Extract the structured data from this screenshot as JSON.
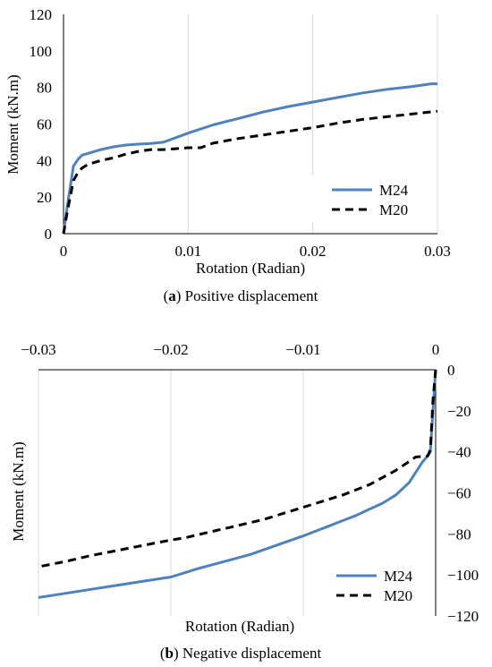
{
  "chart_data": [
    {
      "type": "line",
      "caption_letter": "a",
      "caption_text": "Positive displacement",
      "xlabel": "Rotation (Radian)",
      "ylabel": "Moment (kN.m)",
      "xlim": [
        0,
        0.03
      ],
      "ylim": [
        0,
        120
      ],
      "xticks": [
        0,
        0.01,
        0.02,
        0.03
      ],
      "xtick_labels": [
        "0",
        "0.01",
        "0.02",
        "0.03"
      ],
      "yticks": [
        0,
        20,
        40,
        60,
        80,
        100,
        120
      ],
      "ytick_labels": [
        "0",
        "20",
        "40",
        "60",
        "80",
        "100",
        "120"
      ],
      "grid": "vertical",
      "legend_position": "bottom-right",
      "series": [
        {
          "name": "M24",
          "color": "#4f81bd",
          "dash": "solid",
          "x": [
            0,
            0.0003,
            0.0008,
            0.0012,
            0.0015,
            0.002,
            0.003,
            0.004,
            0.005,
            0.006,
            0.007,
            0.008,
            0.009,
            0.01,
            0.012,
            0.014,
            0.016,
            0.018,
            0.02,
            0.022,
            0.024,
            0.026,
            0.028,
            0.0295,
            0.03
          ],
          "y": [
            0,
            15,
            37,
            41,
            43,
            44,
            46,
            47.5,
            48.5,
            49,
            49.3,
            50,
            52.5,
            55,
            59.5,
            63,
            66.5,
            69.5,
            72,
            74.5,
            77,
            79,
            80.5,
            82,
            82
          ]
        },
        {
          "name": "M20",
          "color": "#000000",
          "dash": "dashed",
          "x": [
            0,
            0.0003,
            0.0008,
            0.0012,
            0.0015,
            0.002,
            0.003,
            0.004,
            0.005,
            0.006,
            0.007,
            0.008,
            0.009,
            0.01,
            0.011,
            0.012,
            0.014,
            0.016,
            0.018,
            0.02,
            0.022,
            0.024,
            0.026,
            0.028,
            0.03
          ],
          "y": [
            0,
            12,
            29,
            34,
            36,
            38,
            40,
            41.5,
            43.5,
            45,
            46,
            46,
            46.5,
            47,
            47,
            49.5,
            52,
            54,
            56,
            58,
            60.5,
            62.5,
            64,
            65.5,
            67
          ]
        }
      ]
    },
    {
      "type": "line",
      "caption_letter": "b",
      "caption_text": "Negative displacement",
      "xlabel": "Rotation (Radian)",
      "ylabel": "Moment (kN.m)",
      "xlim": [
        -0.03,
        0
      ],
      "ylim": [
        -120,
        0
      ],
      "x_axis_position": "top",
      "y_axis_position": "right",
      "xticks": [
        -0.03,
        -0.02,
        -0.01,
        0
      ],
      "xtick_labels": [
        "−0.03",
        "−0.02",
        "−0.01",
        "0"
      ],
      "yticks": [
        0,
        -20,
        -40,
        -60,
        -80,
        -100,
        -120
      ],
      "ytick_labels": [
        "0",
        "−20",
        "−40",
        "−60",
        "−80",
        "−100",
        "−120"
      ],
      "grid": "vertical",
      "legend_position": "bottom-right",
      "series": [
        {
          "name": "M24",
          "color": "#4f81bd",
          "dash": "solid",
          "x": [
            0,
            -0.0002,
            -0.0004,
            -0.0006,
            -0.001,
            -0.0015,
            -0.002,
            -0.003,
            -0.004,
            -0.005,
            -0.006,
            -0.007,
            -0.008,
            -0.009,
            -0.01,
            -0.012,
            -0.014,
            -0.016,
            -0.018,
            -0.019,
            -0.02,
            -0.022,
            -0.024,
            -0.026,
            -0.028,
            -0.03
          ],
          "y": [
            0,
            -20,
            -40,
            -42,
            -45,
            -50,
            -55,
            -61,
            -65,
            -68,
            -71,
            -73.5,
            -76,
            -78.5,
            -81,
            -85.5,
            -90,
            -93.5,
            -97,
            -99,
            -101,
            -103,
            -105,
            -107,
            -109,
            -111
          ]
        },
        {
          "name": "M20",
          "color": "#000000",
          "dash": "dashed",
          "x": [
            0,
            -0.0002,
            -0.0004,
            -0.0006,
            -0.0015,
            -0.003,
            -0.005,
            -0.007,
            -0.009,
            -0.011,
            -0.013,
            -0.015,
            -0.017,
            -0.019,
            -0.02,
            -0.022,
            -0.024,
            -0.026,
            -0.028,
            -0.03
          ],
          "y": [
            0,
            -15,
            -39,
            -42,
            -42.5,
            -49,
            -56,
            -61,
            -65,
            -69,
            -73,
            -76,
            -79,
            -82,
            -83,
            -85.5,
            -88,
            -90.5,
            -93.5,
            -96
          ]
        }
      ]
    }
  ]
}
